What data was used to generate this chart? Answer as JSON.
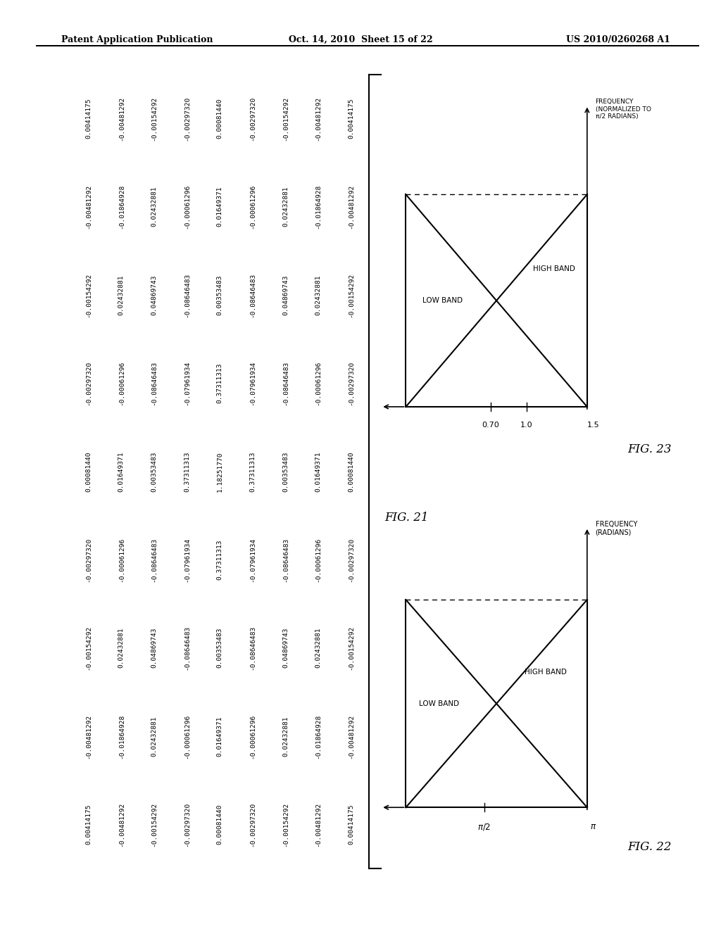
{
  "header_left": "Patent Application Publication",
  "header_center": "Oct. 14, 2010  Sheet 15 of 22",
  "header_right": "US 2010/0260268 A1",
  "fig21_label": "FIG. 21",
  "fig22_label": "FIG. 22",
  "fig23_label": "FIG. 23",
  "table_data": [
    [
      0.00414175,
      -0.00481292,
      -0.00154292,
      -0.0029732,
      0.0008144,
      -0.0029732,
      -0.00154292,
      -0.00481292,
      0.00414175
    ],
    [
      -0.00481292,
      -0.01864928,
      0.02432881,
      -0.00061296,
      0.01649371,
      -0.00061296,
      0.02432881,
      -0.01864928,
      -0.00481292
    ],
    [
      -0.00154292,
      0.02432881,
      0.04869743,
      -0.08646483,
      0.00353483,
      -0.08646483,
      0.04869743,
      0.02432881,
      -0.00154292
    ],
    [
      -0.0029732,
      -0.00061296,
      -0.08646483,
      -0.07961934,
      0.37311313,
      -0.07961934,
      -0.08646483,
      -0.00061296,
      -0.0029732
    ],
    [
      0.0008144,
      0.01649371,
      0.00353483,
      0.37311313,
      1.1825177,
      0.37311313,
      0.00353483,
      0.01649371,
      0.0008144
    ],
    [
      -0.0029732,
      -0.00061296,
      -0.08646483,
      -0.07961934,
      0.37311313,
      -0.07961934,
      -0.08646483,
      -0.00061296,
      -0.0029732
    ],
    [
      -0.00154292,
      0.02432881,
      0.04869743,
      -0.08646483,
      0.00353483,
      -0.08646483,
      0.04869743,
      0.02432881,
      -0.00154292
    ],
    [
      -0.00481292,
      -0.01864928,
      0.02432881,
      -0.00061296,
      0.01649371,
      -0.00061296,
      0.02432881,
      -0.01864928,
      -0.00481292
    ],
    [
      0.00414175,
      -0.00481292,
      -0.00154292,
      -0.0029732,
      0.0008144,
      -0.0029732,
      -0.00154292,
      -0.00481292,
      0.00414175
    ]
  ],
  "bg_color": "#ffffff",
  "text_color": "#000000",
  "table_font_size": 6.8,
  "fig_label_fontsize": 12,
  "header_fontsize": 9
}
